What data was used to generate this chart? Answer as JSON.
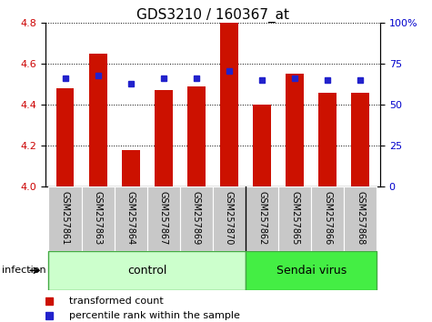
{
  "title": "GDS3210 / 160367_at",
  "samples": [
    "GSM257861",
    "GSM257863",
    "GSM257864",
    "GSM257867",
    "GSM257869",
    "GSM257870",
    "GSM257862",
    "GSM257865",
    "GSM257866",
    "GSM257868"
  ],
  "bar_values": [
    4.48,
    4.65,
    4.18,
    4.47,
    4.49,
    4.8,
    4.4,
    4.55,
    4.46,
    4.46
  ],
  "blue_values": [
    4.53,
    4.54,
    4.5,
    4.53,
    4.53,
    4.565,
    4.52,
    4.53,
    4.52,
    4.52
  ],
  "ylim": [
    4.0,
    4.8
  ],
  "yticks_left": [
    4.0,
    4.2,
    4.4,
    4.6,
    4.8
  ],
  "yticks_right": [
    0,
    25,
    50,
    75,
    100
  ],
  "bar_color": "#cc1100",
  "blue_color": "#2222cc",
  "plot_bg": "#ffffff",
  "label_bg": "#c8c8c8",
  "control_bg": "#ccffcc",
  "sendai_bg": "#44ee44",
  "control_label": "control",
  "sendai_label": "Sendai virus",
  "infection_label": "infection",
  "n_control": 6,
  "n_sendai": 4,
  "legend_items": [
    "transformed count",
    "percentile rank within the sample"
  ],
  "bar_width": 0.55,
  "ylabel_left_color": "#cc0000",
  "ylabel_right_color": "#0000cc",
  "title_fontsize": 11
}
